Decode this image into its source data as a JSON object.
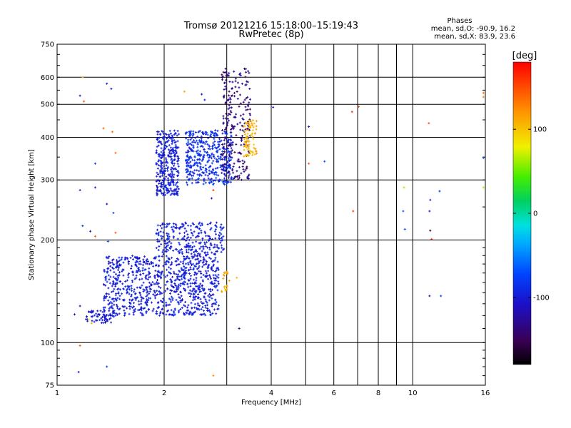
{
  "chart_data": {
    "type": "scatter",
    "title": "Tromsø 20121216 15:18:00–15:19:43",
    "subtitle": "RwPretec (8p)",
    "xlabel": "Frequency [MHz]",
    "ylabel": "Stationary phase Virtual Height [km]",
    "x_scale": "log",
    "y_scale": "log",
    "xlim": [
      1,
      16
    ],
    "ylim": [
      75,
      750
    ],
    "x_ticks": [
      1,
      2,
      4,
      6,
      8,
      10,
      16
    ],
    "x_minor_gridlines": [
      3,
      5,
      7,
      9
    ],
    "y_ticks": [
      75,
      100,
      200,
      300,
      400,
      500,
      600,
      750
    ],
    "grid": true,
    "stats": {
      "heading": "Phases",
      "line1": "mean, sd,O: -90.9, 16.2",
      "line2": "mean, sd,X: 83.9, 23.6"
    },
    "colorbar": {
      "label": "[deg]",
      "range": [
        -180,
        180
      ],
      "ticks": [
        100,
        0,
        -100
      ]
    },
    "clusters": [
      {
        "x_range": [
          1.35,
          2.85
        ],
        "y_range": [
          120,
          180
        ],
        "phase": -100,
        "count": 900
      },
      {
        "x_range": [
          1.9,
          2.95
        ],
        "y_range": [
          180,
          225
        ],
        "phase": -100,
        "count": 260
      },
      {
        "x_range": [
          1.2,
          1.45
        ],
        "y_range": [
          114,
          124
        ],
        "phase": -105,
        "count": 60
      },
      {
        "x_range": [
          1.9,
          2.2
        ],
        "y_range": [
          270,
          420
        ],
        "phase": -100,
        "count": 320
      },
      {
        "x_range": [
          2.3,
          3.1
        ],
        "y_range": [
          290,
          420
        ],
        "phase": -90,
        "count": 420
      },
      {
        "x_range": [
          2.9,
          3.5
        ],
        "y_range": [
          300,
          640
        ],
        "phase": -135,
        "count": 240
      },
      {
        "x_range": [
          3.35,
          3.65
        ],
        "y_range": [
          350,
          450
        ],
        "phase": 110,
        "count": 80
      },
      {
        "x_range": [
          2.9,
          3.05
        ],
        "y_range": [
          140,
          165
        ],
        "phase": 115,
        "count": 20
      }
    ],
    "points": [
      {
        "x": 1.18,
        "y": 600,
        "phase": 110
      },
      {
        "x": 1.16,
        "y": 530,
        "phase": -110
      },
      {
        "x": 1.19,
        "y": 510,
        "phase": 150
      },
      {
        "x": 1.38,
        "y": 575,
        "phase": -110
      },
      {
        "x": 1.42,
        "y": 555,
        "phase": -95
      },
      {
        "x": 1.35,
        "y": 425,
        "phase": 145
      },
      {
        "x": 1.43,
        "y": 415,
        "phase": 140
      },
      {
        "x": 1.46,
        "y": 360,
        "phase": 140
      },
      {
        "x": 1.28,
        "y": 335,
        "phase": -80
      },
      {
        "x": 1.16,
        "y": 280,
        "phase": -100
      },
      {
        "x": 1.28,
        "y": 285,
        "phase": -100
      },
      {
        "x": 1.38,
        "y": 255,
        "phase": -120
      },
      {
        "x": 1.44,
        "y": 240,
        "phase": -80
      },
      {
        "x": 1.18,
        "y": 220,
        "phase": -90
      },
      {
        "x": 1.24,
        "y": 212,
        "phase": -120
      },
      {
        "x": 1.28,
        "y": 205,
        "phase": 145
      },
      {
        "x": 1.46,
        "y": 210,
        "phase": 145
      },
      {
        "x": 1.39,
        "y": 198,
        "phase": -70
      },
      {
        "x": 1.16,
        "y": 128,
        "phase": -120
      },
      {
        "x": 1.12,
        "y": 121,
        "phase": -110
      },
      {
        "x": 1.23,
        "y": 117,
        "phase": 80
      },
      {
        "x": 1.25,
        "y": 114,
        "phase": 110
      },
      {
        "x": 1.16,
        "y": 98,
        "phase": 145
      },
      {
        "x": 1.15,
        "y": 82,
        "phase": -110
      },
      {
        "x": 1.38,
        "y": 85,
        "phase": -80
      },
      {
        "x": 2.28,
        "y": 545,
        "phase": 115
      },
      {
        "x": 2.55,
        "y": 535,
        "phase": -110
      },
      {
        "x": 2.6,
        "y": 515,
        "phase": -100
      },
      {
        "x": 2.75,
        "y": 280,
        "phase": 165
      },
      {
        "x": 2.72,
        "y": 265,
        "phase": -100
      },
      {
        "x": 2.75,
        "y": 80,
        "phase": 125
      },
      {
        "x": 3.25,
        "y": 110,
        "phase": -140
      },
      {
        "x": 3.2,
        "y": 155,
        "phase": 110
      },
      {
        "x": 4.05,
        "y": 490,
        "phase": -110
      },
      {
        "x": 5.1,
        "y": 430,
        "phase": -110
      },
      {
        "x": 5.1,
        "y": 335,
        "phase": 145
      },
      {
        "x": 5.65,
        "y": 340,
        "phase": -70
      },
      {
        "x": 6.75,
        "y": 475,
        "phase": 160
      },
      {
        "x": 7.05,
        "y": 492,
        "phase": 150
      },
      {
        "x": 6.8,
        "y": 243,
        "phase": 160
      },
      {
        "x": 9.45,
        "y": 285,
        "phase": 60
      },
      {
        "x": 9.4,
        "y": 243,
        "phase": -70
      },
      {
        "x": 9.5,
        "y": 215,
        "phase": -80
      },
      {
        "x": 11.1,
        "y": 440,
        "phase": 150
      },
      {
        "x": 11.2,
        "y": 262,
        "phase": -100
      },
      {
        "x": 11.15,
        "y": 243,
        "phase": -110
      },
      {
        "x": 11.2,
        "y": 213,
        "phase": -160
      },
      {
        "x": 11.3,
        "y": 201,
        "phase": 170
      },
      {
        "x": 11.9,
        "y": 278,
        "phase": -90
      },
      {
        "x": 11.15,
        "y": 137,
        "phase": -120
      },
      {
        "x": 12.0,
        "y": 137,
        "phase": -80
      },
      {
        "x": 15.8,
        "y": 540,
        "phase": 140
      },
      {
        "x": 15.8,
        "y": 525,
        "phase": 130
      },
      {
        "x": 15.8,
        "y": 348,
        "phase": -70
      },
      {
        "x": 15.8,
        "y": 285,
        "phase": 60
      }
    ]
  }
}
